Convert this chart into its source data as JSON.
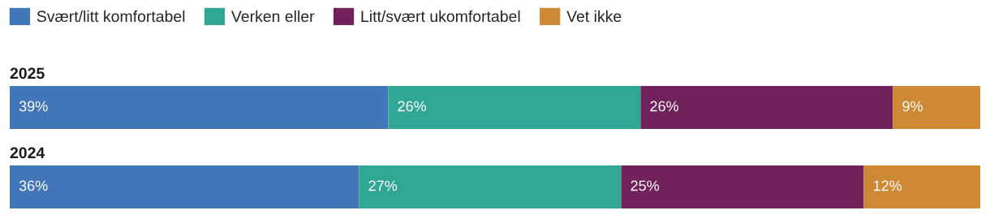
{
  "chart_data": {
    "type": "bar",
    "orientation": "horizontal",
    "stacked": true,
    "categories": [
      "2025",
      "2024"
    ],
    "xlim": [
      0,
      100
    ],
    "series": [
      {
        "name": "Svært/litt komfortabel",
        "color": "#4375b9",
        "values": [
          39,
          36
        ],
        "value_labels": [
          "39%",
          "36%"
        ]
      },
      {
        "name": "Verken eller",
        "color": "#30a795",
        "values": [
          26,
          27
        ],
        "value_labels": [
          "26%",
          "27%"
        ]
      },
      {
        "name": "Litt/svært ukomfortabel",
        "color": "#72225a",
        "values": [
          26,
          25
        ],
        "value_labels": [
          "26%",
          "25%"
        ]
      },
      {
        "name": "Vet ikke",
        "color": "#cf8833",
        "values": [
          9,
          12
        ],
        "value_labels": [
          "9%",
          "12%"
        ]
      }
    ],
    "legend": "top left"
  }
}
